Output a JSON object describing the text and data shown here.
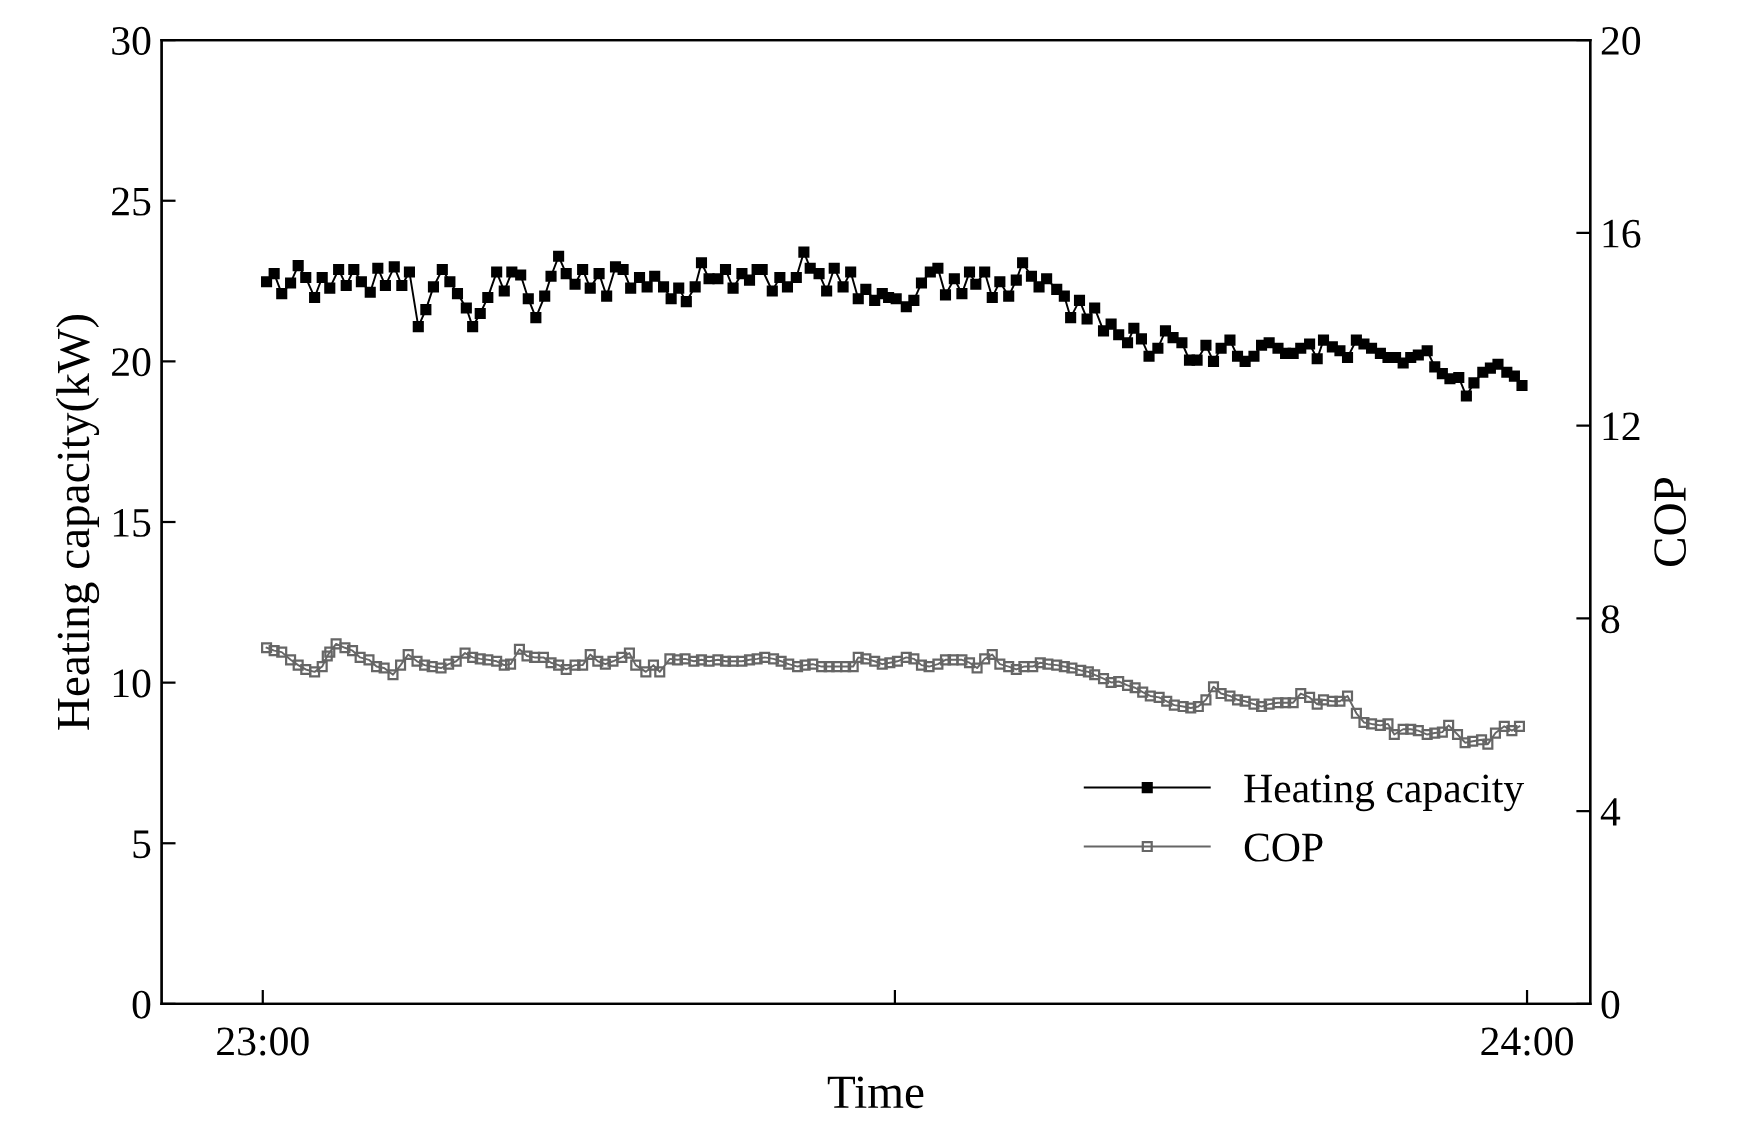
{
  "chart_data": {
    "type": "line",
    "xlabel": "Time",
    "ylabel": "Heating capacity(kW)",
    "y2label": "COP",
    "xlim": [
      22.92,
      24.05
    ],
    "xticks": [
      {
        "value": 23,
        "label": "23:00"
      },
      {
        "value": 23.5,
        "label": null
      },
      {
        "value": 24,
        "label": "24:00"
      }
    ],
    "ylim": [
      0,
      30
    ],
    "yticks": [
      0,
      5,
      10,
      15,
      20,
      25,
      30
    ],
    "y2lim": [
      0,
      20
    ],
    "y2ticks": [
      0,
      4,
      8,
      12,
      16,
      20
    ],
    "grid": false,
    "legend": "bottom right",
    "marker": "square",
    "line_style": "solid",
    "series": [
      {
        "name": "Heating capacity",
        "color": "#000000",
        "axis": "y",
        "x": [
          23.003,
          23.009,
          23.015,
          23.022,
          23.028,
          23.034,
          23.041,
          23.047,
          23.053,
          23.06,
          23.066,
          23.072,
          23.078,
          23.085,
          23.091,
          23.097,
          23.104,
          23.11,
          23.116,
          23.123,
          23.129,
          23.135,
          23.142,
          23.148,
          23.154,
          23.161,
          23.166,
          23.172,
          23.178,
          23.185,
          23.191,
          23.197,
          23.204,
          23.21,
          23.216,
          23.223,
          23.228,
          23.234,
          23.24,
          23.247,
          23.253,
          23.259,
          23.266,
          23.272,
          23.279,
          23.285,
          23.291,
          23.298,
          23.304,
          23.31,
          23.317,
          23.323,
          23.329,
          23.335,
          23.342,
          23.347,
          23.353,
          23.36,
          23.366,
          23.372,
          23.379,
          23.385,
          23.391,
          23.395,
          23.403,
          23.409,
          23.415,
          23.422,
          23.428,
          23.433,
          23.44,
          23.446,
          23.452,
          23.459,
          23.465,
          23.471,
          23.477,
          23.484,
          23.49,
          23.495,
          23.501,
          23.509,
          23.515,
          23.521,
          23.528,
          23.534,
          23.54,
          23.547,
          23.553,
          23.559,
          23.564,
          23.571,
          23.577,
          23.583,
          23.59,
          23.596,
          23.601,
          23.608,
          23.614,
          23.62,
          23.628,
          23.634,
          23.639,
          23.646,
          23.652,
          23.658,
          23.665,
          23.671,
          23.677,
          23.684,
          23.689,
          23.695,
          23.701,
          23.708,
          23.714,
          23.72,
          23.727,
          23.733,
          23.739,
          23.746,
          23.752,
          23.758,
          23.765,
          23.771,
          23.777,
          23.784,
          23.79,
          23.796,
          23.803,
          23.809,
          23.815,
          23.821,
          23.828,
          23.834,
          23.839,
          23.846,
          23.852,
          23.858,
          23.865,
          23.871,
          23.877,
          23.884,
          23.89,
          23.896,
          23.902,
          23.908,
          23.914,
          23.921,
          23.927,
          23.933,
          23.939,
          23.946,
          23.952,
          23.958,
          23.965,
          23.971,
          23.977,
          23.984,
          23.99,
          23.996
        ],
        "values": [
          22.48,
          22.73,
          22.11,
          22.44,
          22.98,
          22.61,
          21.99,
          22.61,
          22.28,
          22.86,
          22.36,
          22.86,
          22.48,
          22.15,
          22.9,
          22.36,
          22.94,
          22.36,
          22.78,
          21.08,
          21.61,
          22.32,
          22.86,
          22.48,
          22.11,
          21.66,
          21.08,
          21.49,
          21.99,
          22.78,
          22.19,
          22.78,
          22.69,
          21.95,
          21.36,
          22.03,
          22.65,
          23.27,
          22.73,
          22.4,
          22.86,
          22.28,
          22.73,
          22.03,
          22.94,
          22.86,
          22.28,
          22.61,
          22.32,
          22.65,
          22.32,
          21.95,
          22.28,
          21.86,
          22.32,
          23.07,
          22.57,
          22.57,
          22.86,
          22.28,
          22.73,
          22.53,
          22.86,
          22.86,
          22.19,
          22.61,
          22.32,
          22.61,
          23.4,
          22.9,
          22.73,
          22.19,
          22.9,
          22.32,
          22.78,
          21.95,
          22.24,
          21.9,
          22.11,
          21.99,
          21.95,
          21.7,
          21.9,
          22.44,
          22.78,
          22.9,
          22.07,
          22.57,
          22.11,
          22.78,
          22.4,
          22.78,
          21.99,
          22.48,
          22.03,
          22.53,
          23.07,
          22.65,
          22.32,
          22.57,
          22.24,
          22.03,
          21.36,
          21.9,
          21.32,
          21.66,
          20.95,
          21.16,
          20.83,
          20.58,
          21.03,
          20.7,
          20.16,
          20.41,
          20.95,
          20.74,
          20.58,
          20.04,
          20.04,
          20.5,
          20.0,
          20.41,
          20.66,
          20.16,
          20.0,
          20.16,
          20.5,
          20.58,
          20.41,
          20.25,
          20.25,
          20.41,
          20.54,
          20.08,
          20.66,
          20.45,
          20.33,
          20.12,
          20.66,
          20.54,
          20.41,
          20.25,
          20.12,
          20.12,
          19.95,
          20.12,
          20.2,
          20.33,
          19.83,
          19.62,
          19.46,
          19.5,
          18.92,
          19.33,
          19.66,
          19.79,
          19.91,
          19.66,
          19.54,
          19.25
        ]
      },
      {
        "name": "COP",
        "color": "#666666",
        "axis": "y2",
        "x": [
          23.003,
          23.009,
          23.015,
          23.022,
          23.028,
          23.034,
          23.041,
          23.047,
          23.051,
          23.053,
          23.058,
          23.065,
          23.071,
          23.077,
          23.084,
          23.09,
          23.096,
          23.103,
          23.109,
          23.115,
          23.122,
          23.128,
          23.134,
          23.141,
          23.147,
          23.153,
          23.16,
          23.166,
          23.172,
          23.178,
          23.185,
          23.191,
          23.196,
          23.203,
          23.209,
          23.215,
          23.222,
          23.228,
          23.234,
          23.24,
          23.247,
          23.253,
          23.259,
          23.265,
          23.271,
          23.277,
          23.284,
          23.29,
          23.295,
          23.303,
          23.309,
          23.314,
          23.322,
          23.328,
          23.334,
          23.341,
          23.347,
          23.353,
          23.36,
          23.366,
          23.372,
          23.379,
          23.385,
          23.391,
          23.397,
          23.404,
          23.41,
          23.416,
          23.423,
          23.429,
          23.435,
          23.442,
          23.448,
          23.454,
          23.461,
          23.467,
          23.471,
          23.477,
          23.484,
          23.49,
          23.496,
          23.502,
          23.509,
          23.515,
          23.521,
          23.527,
          23.534,
          23.54,
          23.546,
          23.553,
          23.559,
          23.565,
          23.571,
          23.577,
          23.583,
          23.59,
          23.596,
          23.602,
          23.609,
          23.615,
          23.621,
          23.628,
          23.634,
          23.64,
          23.647,
          23.653,
          23.658,
          23.665,
          23.671,
          23.677,
          23.684,
          23.69,
          23.696,
          23.702,
          23.709,
          23.715,
          23.721,
          23.728,
          23.734,
          23.74,
          23.746,
          23.752,
          23.758,
          23.765,
          23.771,
          23.777,
          23.784,
          23.79,
          23.796,
          23.803,
          23.809,
          23.815,
          23.821,
          23.828,
          23.834,
          23.839,
          23.846,
          23.852,
          23.858,
          23.865,
          23.871,
          23.877,
          23.884,
          23.89,
          23.895,
          23.902,
          23.908,
          23.914,
          23.921,
          23.927,
          23.933,
          23.938,
          23.945,
          23.951,
          23.957,
          23.964,
          23.969,
          23.975,
          23.982,
          23.988,
          23.994
        ],
        "values": [
          7.39,
          7.33,
          7.3,
          7.14,
          7.03,
          6.94,
          6.89,
          7.0,
          7.22,
          7.3,
          7.47,
          7.39,
          7.33,
          7.19,
          7.14,
          7.0,
          6.97,
          6.83,
          7.03,
          7.25,
          7.11,
          7.03,
          7.0,
          6.97,
          7.05,
          7.11,
          7.28,
          7.19,
          7.16,
          7.14,
          7.11,
          7.03,
          7.05,
          7.36,
          7.22,
          7.19,
          7.19,
          7.08,
          7.03,
          6.94,
          7.03,
          7.03,
          7.25,
          7.11,
          7.05,
          7.11,
          7.19,
          7.28,
          7.03,
          6.89,
          7.03,
          6.89,
          7.16,
          7.14,
          7.16,
          7.11,
          7.14,
          7.11,
          7.14,
          7.11,
          7.11,
          7.11,
          7.14,
          7.16,
          7.19,
          7.16,
          7.11,
          7.05,
          7.0,
          7.03,
          7.05,
          7.0,
          7.0,
          7.0,
          7.0,
          7.0,
          7.19,
          7.16,
          7.11,
          7.05,
          7.08,
          7.11,
          7.19,
          7.16,
          7.03,
          7.0,
          7.05,
          7.14,
          7.14,
          7.14,
          7.08,
          6.97,
          7.16,
          7.25,
          7.05,
          7.0,
          6.94,
          7.0,
          7.0,
          7.08,
          7.05,
          7.03,
          7.0,
          6.97,
          6.92,
          6.89,
          6.83,
          6.75,
          6.67,
          6.69,
          6.61,
          6.56,
          6.47,
          6.39,
          6.36,
          6.28,
          6.2,
          6.17,
          6.14,
          6.17,
          6.31,
          6.58,
          6.44,
          6.39,
          6.31,
          6.28,
          6.22,
          6.17,
          6.22,
          6.25,
          6.25,
          6.25,
          6.44,
          6.36,
          6.22,
          6.31,
          6.28,
          6.28,
          6.39,
          6.03,
          5.84,
          5.81,
          5.78,
          5.81,
          5.59,
          5.7,
          5.7,
          5.67,
          5.59,
          5.62,
          5.64,
          5.78,
          5.59,
          5.42,
          5.45,
          5.48,
          5.39,
          5.62,
          5.76,
          5.67,
          5.76
        ]
      }
    ]
  }
}
